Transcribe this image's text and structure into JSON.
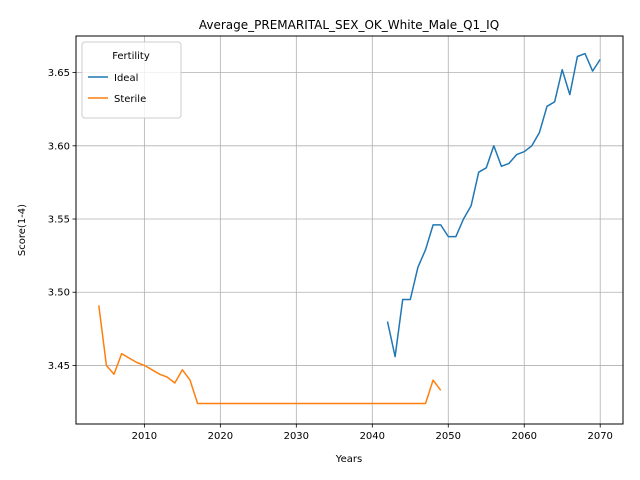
{
  "chart_data": {
    "type": "line",
    "title": "Average_PREMARITAL_SEX_OK_White_Male_Q1_IQ",
    "xlabel": "Years",
    "ylabel": "Score(1-4)",
    "xlim": [
      2001,
      2073
    ],
    "ylim": [
      3.41,
      3.675
    ],
    "xticks": [
      2010,
      2020,
      2030,
      2040,
      2050,
      2060,
      2070
    ],
    "yticks": [
      3.45,
      3.5,
      3.55,
      3.6,
      3.65
    ],
    "xtick_labels": [
      "2010",
      "2020",
      "2030",
      "2040",
      "2050",
      "2060",
      "2070"
    ],
    "ytick_labels": [
      "3.45",
      "3.50",
      "3.55",
      "3.60",
      "3.65"
    ],
    "grid": true,
    "legend": {
      "title": "Fertility",
      "placement": "top-left"
    },
    "series": [
      {
        "name": "Ideal",
        "color": "#1f77b4",
        "x": [
          2042,
          2043,
          2044,
          2045,
          2046,
          2047,
          2048,
          2049,
          2050,
          2051,
          2052,
          2053,
          2054,
          2055,
          2056,
          2057,
          2058,
          2059,
          2060,
          2061,
          2062,
          2063,
          2064,
          2065,
          2066,
          2067,
          2068,
          2069,
          2070
        ],
        "y": [
          3.48,
          3.456,
          3.495,
          3.495,
          3.517,
          3.529,
          3.546,
          3.546,
          3.538,
          3.538,
          3.55,
          3.559,
          3.582,
          3.585,
          3.6,
          3.586,
          3.588,
          3.594,
          3.596,
          3.6,
          3.609,
          3.627,
          3.63,
          3.652,
          3.635,
          3.661,
          3.663,
          3.651,
          3.659
        ]
      },
      {
        "name": "Sterile",
        "color": "#ff7f0e",
        "x": [
          2004,
          2005,
          2006,
          2007,
          2008,
          2009,
          2010,
          2011,
          2012,
          2013,
          2014,
          2015,
          2016,
          2017,
          2018,
          2020,
          2025,
          2030,
          2035,
          2040,
          2045,
          2046,
          2047,
          2048,
          2049
        ],
        "y": [
          3.491,
          3.45,
          3.444,
          3.458,
          3.455,
          3.452,
          3.45,
          3.447,
          3.444,
          3.442,
          3.438,
          3.447,
          3.44,
          3.424,
          3.424,
          3.424,
          3.424,
          3.424,
          3.424,
          3.424,
          3.424,
          3.424,
          3.424,
          3.44,
          3.433
        ]
      }
    ]
  }
}
